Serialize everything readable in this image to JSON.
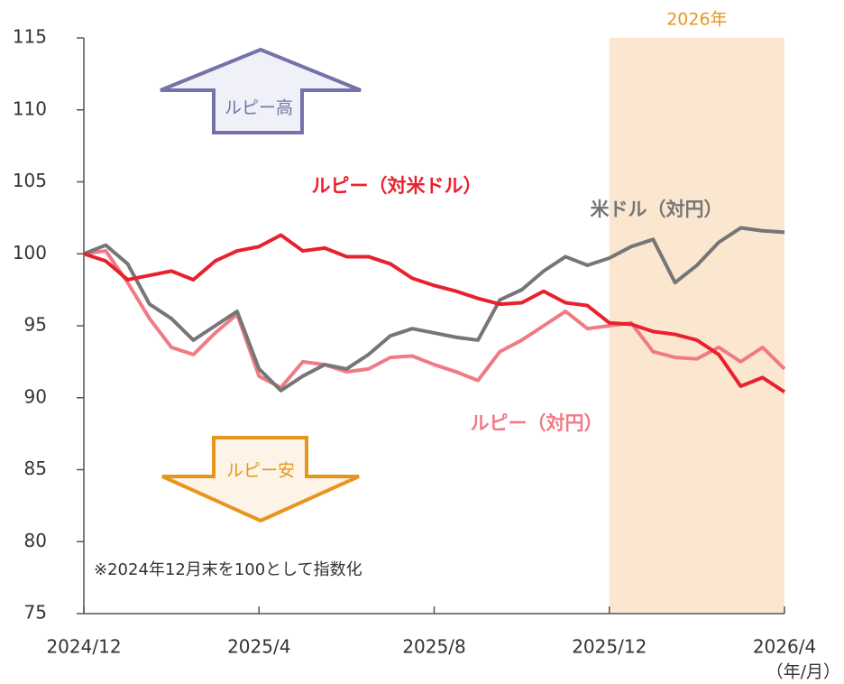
{
  "chart_data": {
    "type": "line",
    "x": [
      0,
      0.5,
      1,
      1.5,
      2,
      2.5,
      3,
      3.5,
      4,
      4.5,
      5,
      5.5,
      6,
      6.5,
      7,
      7.5,
      8,
      8.5,
      9,
      9.5,
      10,
      10.5,
      11,
      11.5,
      12,
      12.5,
      13,
      13.5,
      14,
      14.5,
      15,
      15.5,
      16
    ],
    "series": [
      {
        "name": "ルピー（対米ドル）",
        "color": "#e8212e",
        "values": [
          100,
          99.5,
          98.2,
          98.5,
          98.8,
          98.2,
          99.5,
          100.2,
          100.5,
          101.3,
          100.2,
          100.4,
          99.8,
          99.8,
          99.3,
          98.3,
          97.8,
          97.4,
          96.9,
          96.5,
          96.6,
          97.4,
          96.6,
          96.4,
          95.2,
          95.1,
          94.6,
          94.4,
          94.0,
          93.0,
          90.8,
          91.4,
          90.4
        ]
      },
      {
        "name": "米ドル（対円）",
        "color": "#767676",
        "values": [
          100,
          100.6,
          99.3,
          96.5,
          95.5,
          94.0,
          95.0,
          96.0,
          92.0,
          90.5,
          91.5,
          92.3,
          92.0,
          93.0,
          94.3,
          94.8,
          94.5,
          94.2,
          94.0,
          96.8,
          97.5,
          98.8,
          99.8,
          99.2,
          99.7,
          100.5,
          101.0,
          98.0,
          99.2,
          100.8,
          101.8,
          101.6,
          101.5
        ]
      },
      {
        "name": "ルピー（対円）",
        "color": "#f07a86",
        "values": [
          100,
          100.2,
          98.0,
          95.5,
          93.5,
          93.0,
          94.5,
          95.8,
          91.5,
          90.7,
          92.5,
          92.3,
          91.8,
          92.0,
          92.8,
          92.9,
          92.3,
          91.8,
          91.2,
          93.2,
          94.0,
          95.0,
          96.0,
          94.8,
          95.0,
          95.2,
          93.2,
          92.8,
          92.7,
          93.5,
          92.5,
          93.5,
          92.0
        ]
      }
    ],
    "xlim": [
      0,
      16
    ],
    "xticks": [
      {
        "value": 0,
        "label": "2024/12"
      },
      {
        "value": 4,
        "label": "2025/4"
      },
      {
        "value": 8,
        "label": "2025/8"
      },
      {
        "value": 12,
        "label": "2025/12"
      },
      {
        "value": 16,
        "label": "2026/4"
      }
    ],
    "ylim": [
      75,
      115
    ],
    "yticks": [
      75,
      80,
      85,
      90,
      95,
      100,
      105,
      110,
      115
    ],
    "xlabel": "（年/月）",
    "highlight": {
      "xrange": [
        12,
        16
      ],
      "label": "2026年",
      "color": "#fbe6d0"
    },
    "annotations": {
      "up": "ルピー高",
      "down": "ルピー安",
      "note": "※2024年12月末を100として指数化"
    }
  }
}
